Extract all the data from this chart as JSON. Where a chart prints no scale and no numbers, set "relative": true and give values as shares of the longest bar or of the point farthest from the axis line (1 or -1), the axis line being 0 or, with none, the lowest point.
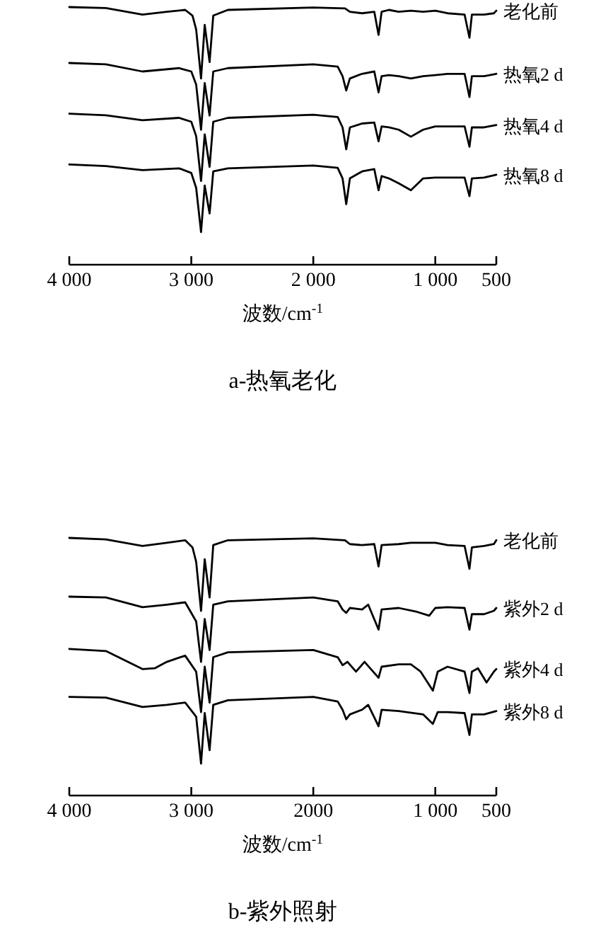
{
  "chart_data": [
    {
      "type": "line",
      "title": "a-热氧老化",
      "xlabel": "波数/cm$^{-1}$",
      "relative": true,
      "xlim": [
        4000,
        500
      ],
      "xticks": [
        {
          "value": 4000,
          "label": "4 000"
        },
        {
          "value": 3000,
          "label": "3 000"
        },
        {
          "value": 2000,
          "label": "2 000"
        },
        {
          "value": 1000,
          "label": "1 000"
        },
        {
          "value": 500,
          "label": "500"
        }
      ],
      "series": [
        {
          "name": "老化前",
          "color": "#000000",
          "x": [
            4000,
            3700,
            3400,
            3200,
            3050,
            2990,
            2960,
            2920,
            2890,
            2850,
            2820,
            2700,
            2000,
            1740,
            1700,
            1600,
            1500,
            1465,
            1440,
            1380,
            1300,
            1200,
            1100,
            1000,
            900,
            760,
            720,
            700,
            600,
            520,
            500
          ],
          "values": [
            1.0,
            0.996,
            0.971,
            0.982,
            0.989,
            0.967,
            0.913,
            0.723,
            0.931,
            0.787,
            0.967,
            0.989,
            0.998,
            0.995,
            0.982,
            0.976,
            0.982,
            0.892,
            0.982,
            0.989,
            0.982,
            0.986,
            0.982,
            0.986,
            0.976,
            0.971,
            0.881,
            0.971,
            0.971,
            0.976,
            0.986
          ]
        },
        {
          "name": "热氧2 d",
          "color": "#000000",
          "x": [
            4000,
            3700,
            3400,
            3100,
            3000,
            2960,
            2920,
            2890,
            2850,
            2820,
            2700,
            2000,
            1800,
            1760,
            1730,
            1700,
            1600,
            1500,
            1465,
            1440,
            1380,
            1300,
            1200,
            1100,
            1000,
            900,
            760,
            720,
            700,
            600,
            500
          ],
          "values": [
            0.783,
            0.778,
            0.75,
            0.763,
            0.75,
            0.699,
            0.524,
            0.705,
            0.579,
            0.75,
            0.763,
            0.778,
            0.769,
            0.732,
            0.676,
            0.723,
            0.741,
            0.75,
            0.669,
            0.732,
            0.736,
            0.732,
            0.723,
            0.732,
            0.736,
            0.741,
            0.741,
            0.651,
            0.732,
            0.732,
            0.741
          ]
        },
        {
          "name": "热氧4 d",
          "color": "#000000",
          "x": [
            4000,
            3700,
            3400,
            3100,
            3000,
            2960,
            2920,
            2890,
            2850,
            2820,
            2700,
            2000,
            1800,
            1760,
            1730,
            1700,
            1600,
            1500,
            1465,
            1440,
            1380,
            1300,
            1200,
            1100,
            1000,
            900,
            760,
            720,
            700,
            600,
            500
          ],
          "values": [
            0.586,
            0.58,
            0.561,
            0.57,
            0.555,
            0.499,
            0.325,
            0.506,
            0.38,
            0.555,
            0.57,
            0.582,
            0.573,
            0.533,
            0.448,
            0.533,
            0.548,
            0.552,
            0.479,
            0.537,
            0.533,
            0.524,
            0.497,
            0.524,
            0.537,
            0.537,
            0.537,
            0.458,
            0.533,
            0.533,
            0.542
          ]
        },
        {
          "name": "热氧8 d",
          "color": "#000000",
          "x": [
            4000,
            3700,
            3400,
            3100,
            3000,
            2960,
            2920,
            2890,
            2850,
            2820,
            2700,
            2000,
            1800,
            1760,
            1730,
            1700,
            1600,
            1500,
            1465,
            1440,
            1380,
            1300,
            1200,
            1100,
            1000,
            900,
            760,
            720,
            700,
            600,
            500
          ],
          "values": [
            0.389,
            0.383,
            0.367,
            0.374,
            0.356,
            0.298,
            0.127,
            0.307,
            0.199,
            0.362,
            0.374,
            0.385,
            0.376,
            0.335,
            0.235,
            0.335,
            0.362,
            0.371,
            0.289,
            0.344,
            0.335,
            0.316,
            0.289,
            0.335,
            0.338,
            0.338,
            0.338,
            0.266,
            0.335,
            0.338,
            0.349
          ]
        }
      ]
    },
    {
      "type": "line",
      "title": "b-紫外照射",
      "xlabel": "波数/cm$^{-1}$",
      "relative": true,
      "xlim": [
        4000,
        500
      ],
      "xticks": [
        {
          "value": 4000,
          "label": "4 000"
        },
        {
          "value": 3000,
          "label": "3 000"
        },
        {
          "value": 2000,
          "label": "2000"
        },
        {
          "value": 1000,
          "label": "1 000"
        },
        {
          "value": 500,
          "label": "500"
        }
      ],
      "series": [
        {
          "name": "老化前",
          "color": "#000000",
          "x": [
            4000,
            3700,
            3400,
            3200,
            3050,
            2990,
            2960,
            2920,
            2890,
            2850,
            2820,
            2700,
            2000,
            1740,
            1700,
            1600,
            1500,
            1465,
            1440,
            1300,
            1200,
            1100,
            1000,
            900,
            760,
            720,
            700,
            600,
            520,
            500
          ],
          "values": [
            1.0,
            0.994,
            0.969,
            0.981,
            0.991,
            0.963,
            0.907,
            0.717,
            0.917,
            0.769,
            0.972,
            0.991,
            0.998,
            0.991,
            0.976,
            0.972,
            0.976,
            0.889,
            0.972,
            0.976,
            0.981,
            0.981,
            0.981,
            0.972,
            0.969,
            0.88,
            0.963,
            0.969,
            0.976,
            0.991
          ]
        },
        {
          "name": "紫外2 d",
          "color": "#000000",
          "x": [
            4000,
            3700,
            3400,
            3200,
            3050,
            2960,
            2920,
            2890,
            2850,
            2820,
            2700,
            2000,
            1800,
            1760,
            1730,
            1700,
            1600,
            1550,
            1465,
            1440,
            1300,
            1150,
            1050,
            1000,
            900,
            760,
            720,
            700,
            600,
            520,
            500
          ],
          "values": [
            0.772,
            0.769,
            0.731,
            0.741,
            0.75,
            0.676,
            0.519,
            0.685,
            0.565,
            0.741,
            0.754,
            0.769,
            0.754,
            0.722,
            0.709,
            0.728,
            0.722,
            0.741,
            0.644,
            0.722,
            0.728,
            0.713,
            0.698,
            0.728,
            0.731,
            0.728,
            0.644,
            0.704,
            0.704,
            0.717,
            0.728
          ]
        },
        {
          "name": "紫外4 d",
          "color": "#000000",
          "x": [
            4000,
            3700,
            3400,
            3300,
            3200,
            3050,
            2960,
            2920,
            2890,
            2850,
            2820,
            2700,
            2000,
            1800,
            1760,
            1720,
            1650,
            1580,
            1465,
            1440,
            1300,
            1200,
            1120,
            1020,
            980,
            900,
            760,
            720,
            700,
            650,
            580,
            520,
            500
          ],
          "values": [
            0.569,
            0.561,
            0.491,
            0.494,
            0.519,
            0.543,
            0.481,
            0.324,
            0.5,
            0.361,
            0.537,
            0.556,
            0.565,
            0.537,
            0.506,
            0.519,
            0.481,
            0.519,
            0.457,
            0.5,
            0.509,
            0.509,
            0.481,
            0.407,
            0.481,
            0.5,
            0.481,
            0.398,
            0.481,
            0.494,
            0.439,
            0.481,
            0.491
          ]
        },
        {
          "name": "紫外8 d",
          "color": "#000000",
          "x": [
            4000,
            3700,
            3400,
            3200,
            3050,
            2960,
            2920,
            2890,
            2850,
            2820,
            2700,
            2000,
            1800,
            1760,
            1730,
            1700,
            1600,
            1550,
            1465,
            1440,
            1300,
            1100,
            1020,
            980,
            900,
            760,
            720,
            700,
            600,
            500
          ],
          "values": [
            0.383,
            0.38,
            0.344,
            0.352,
            0.361,
            0.306,
            0.124,
            0.32,
            0.176,
            0.352,
            0.37,
            0.383,
            0.365,
            0.333,
            0.296,
            0.315,
            0.333,
            0.352,
            0.269,
            0.333,
            0.328,
            0.315,
            0.278,
            0.324,
            0.324,
            0.32,
            0.235,
            0.315,
            0.315,
            0.328
          ]
        }
      ]
    }
  ]
}
